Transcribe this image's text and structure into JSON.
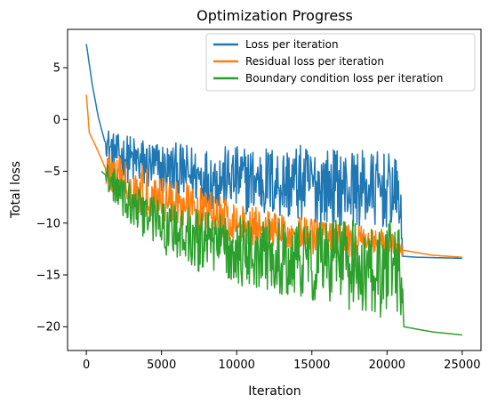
{
  "chart_data": {
    "type": "line",
    "title": "Optimization Progress",
    "xlabel": "Iteration",
    "ylabel": "Total loss",
    "xlim": [
      -1250,
      26250
    ],
    "ylim": [
      -22.3,
      8.7
    ],
    "xticks": [
      0,
      5000,
      10000,
      15000,
      20000,
      25000
    ],
    "yticks": [
      5,
      0,
      -5,
      -10,
      -15,
      -20
    ],
    "xtick_labels": [
      "0",
      "5000",
      "10000",
      "15000",
      "20000",
      "25000"
    ],
    "ytick_labels": [
      "5",
      "0",
      "−5",
      "−10",
      "−15",
      "−20"
    ],
    "grid": false,
    "legend_position": "top-right",
    "series": [
      {
        "name": "Loss per iteration",
        "color": "#1f77b4",
        "baseline": [
          [
            0,
            7.3
          ],
          [
            400,
            3.3
          ],
          [
            800,
            0.2
          ],
          [
            1200,
            -2.0
          ],
          [
            1600,
            -3.3
          ],
          [
            2000,
            -3.9
          ],
          [
            3000,
            -4.7
          ],
          [
            5000,
            -5.6
          ],
          [
            8000,
            -6.5
          ],
          [
            11000,
            -6.9
          ],
          [
            14000,
            -7.3
          ],
          [
            17000,
            -7.7
          ],
          [
            20000,
            -8.0
          ],
          [
            20800,
            -8.2
          ],
          [
            21000,
            -13.2
          ],
          [
            22000,
            -13.3
          ],
          [
            25000,
            -13.4
          ]
        ],
        "noise_range": [
          1300,
          21000
        ],
        "noise_envelope": [
          [
            1300,
            3.0
          ],
          [
            3000,
            5.0
          ],
          [
            8000,
            6.0
          ],
          [
            14000,
            7.5
          ],
          [
            20000,
            7.5
          ],
          [
            21000,
            6.0
          ]
        ],
        "noise_high_bound": -1.0
      },
      {
        "name": "Residual loss per iteration",
        "color": "#ff7f0e",
        "baseline": [
          [
            0,
            2.4
          ],
          [
            200,
            -1.3
          ],
          [
            600,
            -2.5
          ],
          [
            1000,
            -3.8
          ],
          [
            1400,
            -5.2
          ],
          [
            2000,
            -6.1
          ],
          [
            3000,
            -7.0
          ],
          [
            5000,
            -8.1
          ],
          [
            8000,
            -9.5
          ],
          [
            10000,
            -10.4
          ],
          [
            12000,
            -11.0
          ],
          [
            15000,
            -11.6
          ],
          [
            18000,
            -12.1
          ],
          [
            21000,
            -12.6
          ],
          [
            23000,
            -13.1
          ],
          [
            25000,
            -13.3
          ]
        ],
        "noise_range": [
          1300,
          21000
        ],
        "noise_envelope": [
          [
            1300,
            4.0
          ],
          [
            3000,
            5.0
          ],
          [
            8000,
            4.5
          ],
          [
            14000,
            3.5
          ],
          [
            20000,
            3.0
          ],
          [
            21000,
            1.5
          ]
        ],
        "noise_high_bound": -1.0
      },
      {
        "name": "Boundary condition loss per iteration",
        "color": "#2ca02c",
        "baseline": [
          [
            1000,
            -5.0
          ],
          [
            2000,
            -6.3
          ],
          [
            3000,
            -7.8
          ],
          [
            5000,
            -10.0
          ],
          [
            8000,
            -11.5
          ],
          [
            11000,
            -12.4
          ],
          [
            14000,
            -12.9
          ],
          [
            17000,
            -13.3
          ],
          [
            20000,
            -13.6
          ],
          [
            21000,
            -13.9
          ],
          [
            21100,
            -20.0
          ],
          [
            23000,
            -20.5
          ],
          [
            25000,
            -20.8
          ]
        ],
        "noise_range": [
          1300,
          21000
        ],
        "noise_envelope": [
          [
            1300,
            2.0
          ],
          [
            3000,
            3.0
          ],
          [
            8000,
            4.0
          ],
          [
            14000,
            5.0
          ],
          [
            20000,
            6.5
          ],
          [
            21000,
            6.5
          ]
        ],
        "noise_high_bound": -1.0
      }
    ]
  }
}
